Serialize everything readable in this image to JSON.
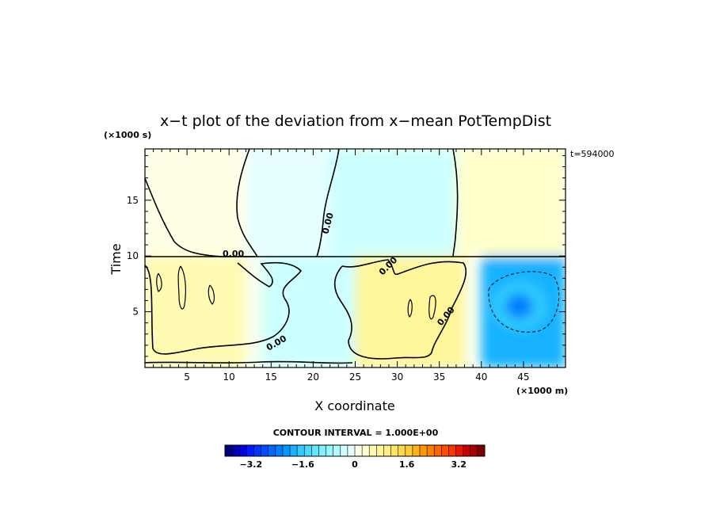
{
  "chart_data": {
    "type": "heatmap",
    "title": "x−t plot of the deviation from x−mean PotTempDist",
    "xlabel": "X coordinate",
    "ylabel": "Time",
    "x_unit": "(×1000 m)",
    "y_unit": "(×1000 s)",
    "time_stamp": "t=594000",
    "xlim": [
      0,
      50
    ],
    "ylim": [
      0,
      19.6
    ],
    "x_ticks": [
      5,
      10,
      15,
      20,
      25,
      30,
      35,
      40,
      45
    ],
    "x_tick_labels": [
      "5",
      "10",
      "15",
      "20",
      "25",
      "30",
      "35",
      "40",
      "45"
    ],
    "y_ticks": [
      5,
      10,
      15
    ],
    "y_tick_labels": [
      "5",
      "10",
      "15"
    ],
    "contour_labels": [
      "0.00",
      "0.00",
      "0.00",
      "0.00",
      "0.00"
    ],
    "contour_interval": "CONTOUR INTERVAL = 1.000E+00",
    "colorbar": {
      "range": [
        -4.0,
        4.0
      ],
      "tick_values": [
        -3.2,
        -1.6,
        0,
        1.6,
        3.2
      ],
      "tick_labels": [
        "−3.2",
        "−1.6",
        "0",
        "1.6",
        "3.2"
      ],
      "colors": [
        "#00007f",
        "#0000b2",
        "#0000e5",
        "#0019ff",
        "#0033ff",
        "#004cff",
        "#0066ff",
        "#007fff",
        "#0099ff",
        "#19b2ff",
        "#33ccff",
        "#4cd8ff",
        "#66e5ff",
        "#7ff0ff",
        "#99f5ff",
        "#b2faff",
        "#ccffff",
        "#e5ffff",
        "#ffffe5",
        "#ffffcc",
        "#fffab2",
        "#fff599",
        "#fff07f",
        "#ffe566",
        "#ffd84c",
        "#ffcc33",
        "#ffb219",
        "#ff9900",
        "#ff7f00",
        "#ff6600",
        "#ff4c00",
        "#ff3300",
        "#e51900",
        "#cc0000",
        "#a50000",
        "#7f0000"
      ]
    },
    "regions": [
      {
        "x": [
          0,
          12
        ],
        "t": [
          10,
          19.6
        ],
        "value": 0.2,
        "sign": "positive"
      },
      {
        "x": [
          12,
          22
        ],
        "t": [
          10,
          19.6
        ],
        "value": -0.2,
        "sign": "negative"
      },
      {
        "x": [
          22,
          37
        ],
        "t": [
          10,
          19.6
        ],
        "value": -0.4,
        "sign": "negative"
      },
      {
        "x": [
          37,
          50
        ],
        "t": [
          10,
          19.6
        ],
        "value": 0.3,
        "sign": "positive"
      },
      {
        "x": [
          0,
          12
        ],
        "t": [
          0,
          10
        ],
        "value": 0.6,
        "sign": "positive"
      },
      {
        "x": [
          14,
          25
        ],
        "t": [
          0,
          10
        ],
        "value": -0.4,
        "sign": "negative"
      },
      {
        "x": [
          25,
          38
        ],
        "t": [
          0,
          10
        ],
        "value": 0.7,
        "sign": "positive"
      },
      {
        "x": [
          40,
          50
        ],
        "t": [
          0,
          10
        ],
        "value": -2.0,
        "sign": "negative"
      }
    ],
    "extrema": [
      {
        "x": 44.5,
        "t": 5.5,
        "value": -2.3
      }
    ]
  }
}
